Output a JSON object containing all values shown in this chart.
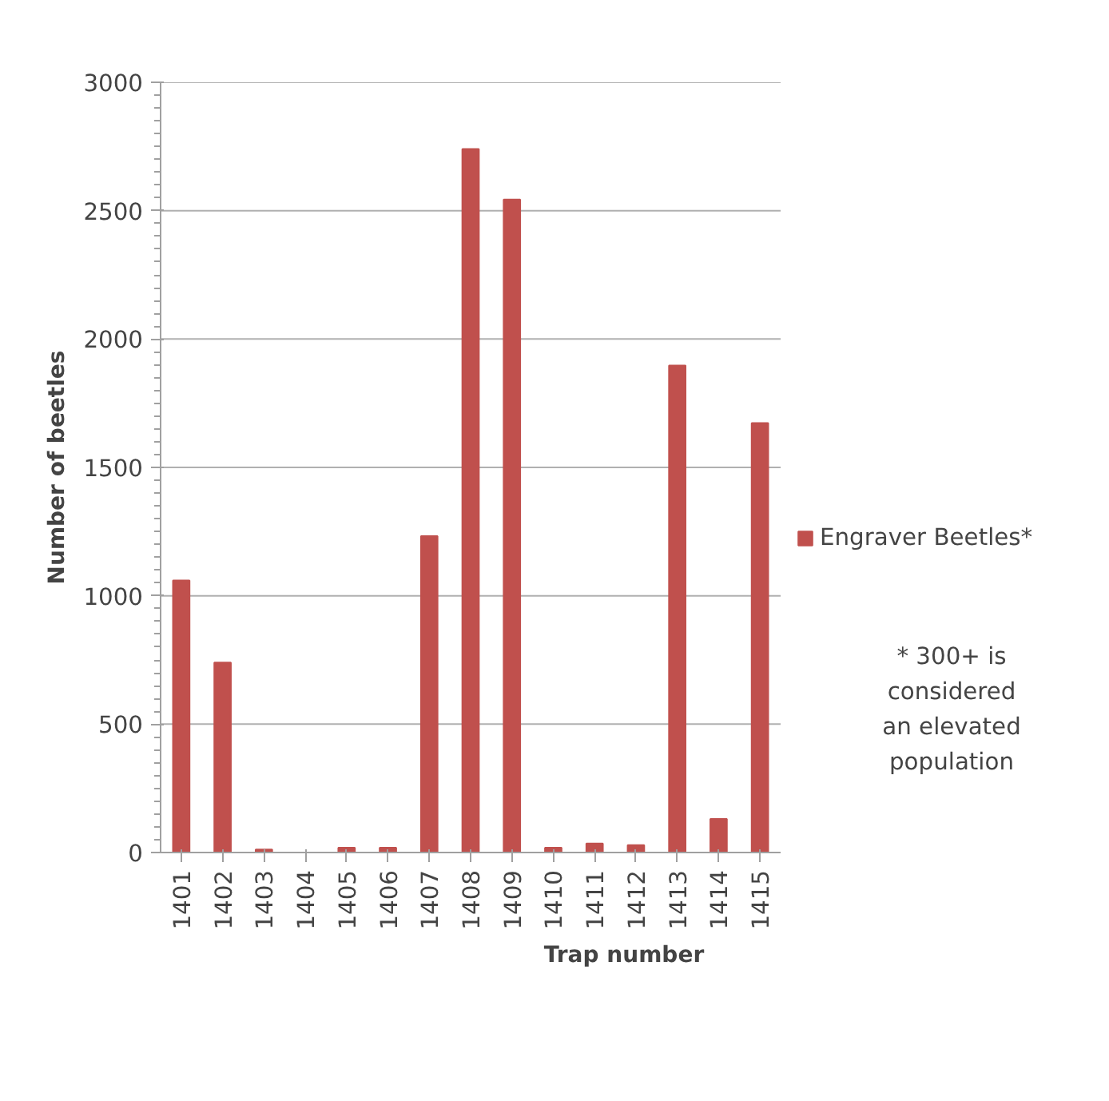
{
  "chart_data": {
    "type": "bar",
    "xlabel": "Trap number",
    "ylabel": "Number of beetles",
    "categories": [
      "1401",
      "1402",
      "1403",
      "1404",
      "1405",
      "1406",
      "1407",
      "1408",
      "1409",
      "1410",
      "1411",
      "1412",
      "1413",
      "1414",
      "1415"
    ],
    "series": [
      {
        "name": "Engraver Beetles*",
        "color": "#c0504d",
        "values": [
          1060,
          740,
          12,
          0,
          19,
          19,
          1232,
          2740,
          2543,
          19,
          35,
          29,
          1897,
          131,
          1673
        ]
      }
    ],
    "ylim": [
      0,
      3000
    ],
    "yticks": [
      0,
      500,
      1000,
      1500,
      2000,
      2500,
      3000
    ],
    "grid": "y",
    "legend": "right",
    "annotations": [
      "* 300+ is\nconsidered\nan elevated\npopulation"
    ]
  }
}
